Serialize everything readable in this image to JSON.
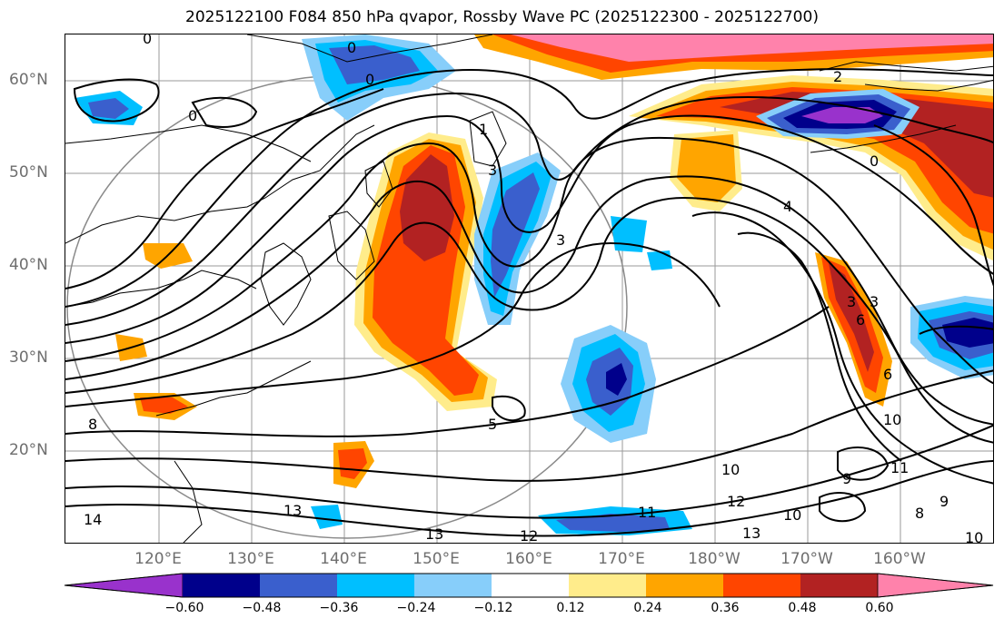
{
  "title": "2025122100 F084 850 hPa qvapor, Rossby Wave PC (2025122300 - 2025122700)",
  "lat_labels": [
    "60°N",
    "50°N",
    "40°N",
    "30°N",
    "20°N"
  ],
  "lon_labels": [
    "120°E",
    "130°E",
    "140°E",
    "150°E",
    "160°E",
    "170°E",
    "180°W",
    "170°W",
    "160°W"
  ],
  "contour_labels": [
    "0",
    "0",
    "0",
    "0",
    "1",
    "3",
    "3",
    "4",
    "3",
    "6",
    "8",
    "9",
    "10",
    "10",
    "11",
    "12",
    "13",
    "13",
    "11",
    "12",
    "13",
    "14",
    "10",
    "9",
    "8",
    "10",
    "3",
    "5",
    "6",
    "2",
    "0"
  ],
  "colorbar": {
    "ticks": [
      "−0.60",
      "−0.48",
      "−0.36",
      "−0.24",
      "−0.12",
      "0.12",
      "0.24",
      "0.36",
      "0.48",
      "0.60"
    ],
    "colors": [
      "#9932cc",
      "#00008b",
      "#3a5fcd",
      "#00bfff",
      "#87cefa",
      "#b0e0ff",
      "#ffffff",
      "#ffec8b",
      "#ffa500",
      "#ff4500",
      "#b22222",
      "#ff82ab"
    ]
  }
}
